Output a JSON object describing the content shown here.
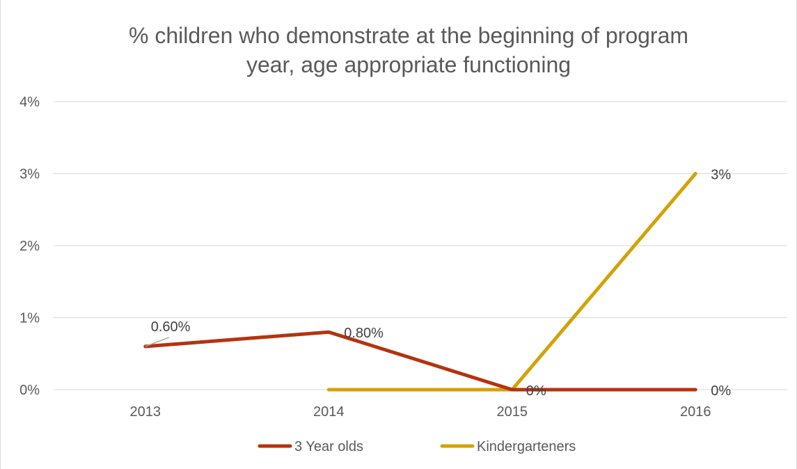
{
  "chart_data": {
    "type": "line",
    "title_lines": [
      "% children who demonstrate at the beginning of program",
      "year, age appropriate functioning"
    ],
    "categories": [
      "2013",
      "2014",
      "2015",
      "2016"
    ],
    "y_ticks": [
      "0%",
      "1%",
      "2%",
      "3%",
      "4%"
    ],
    "ylim": [
      0,
      4
    ],
    "grid": true,
    "legend_position": "bottom",
    "series": [
      {
        "name": "3 Year olds",
        "color": "#b5330f",
        "values": [
          0.6,
          0.8,
          0,
          0
        ],
        "labels": [
          "0.60%",
          "0.80%",
          "0%",
          "0%"
        ]
      },
      {
        "name": "Kindergarteners",
        "color": "#d4a207",
        "values": [
          null,
          0,
          0,
          3
        ],
        "labels": [
          "",
          "",
          "",
          "3%"
        ]
      }
    ]
  }
}
